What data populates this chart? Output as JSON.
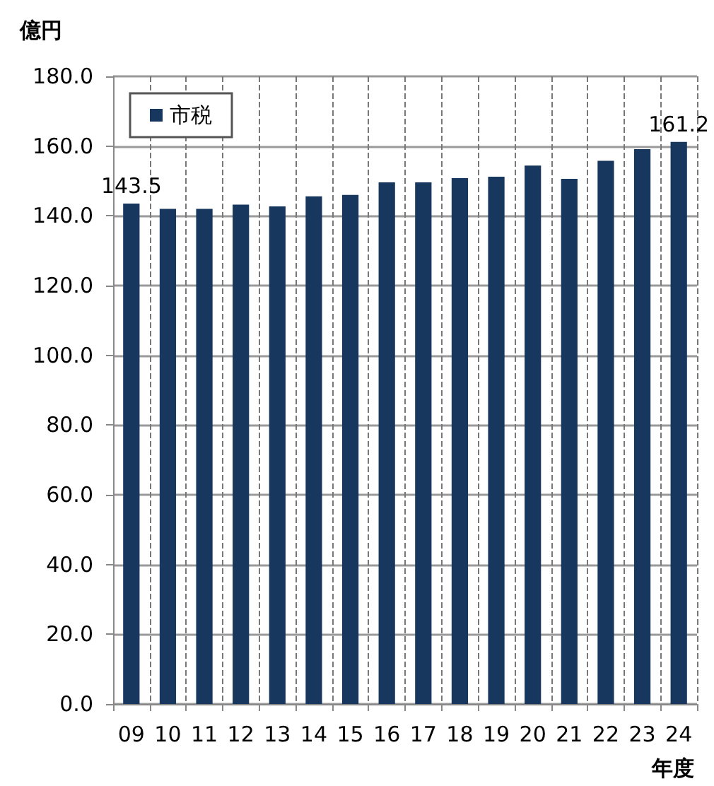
{
  "chart_data": {
    "type": "bar",
    "ylabel": "億円",
    "xlabel": "年度",
    "categories": [
      "09",
      "10",
      "11",
      "12",
      "13",
      "14",
      "15",
      "16",
      "17",
      "18",
      "19",
      "20",
      "21",
      "22",
      "23",
      "24"
    ],
    "series": [
      {
        "name": "市税",
        "color": "#17375e",
        "values": [
          143.5,
          142.0,
          142.0,
          143.2,
          142.7,
          145.6,
          146.0,
          149.6,
          149.6,
          150.8,
          151.2,
          154.4,
          150.6,
          155.8,
          159.1,
          161.2
        ],
        "value_labels": [
          "143.5",
          null,
          null,
          null,
          null,
          null,
          null,
          null,
          null,
          null,
          null,
          null,
          null,
          null,
          null,
          "161.2"
        ]
      }
    ],
    "ylim": [
      0,
      180
    ],
    "yticks": [
      {
        "value": 0,
        "label": "0.0"
      },
      {
        "value": 20,
        "label": "20.0"
      },
      {
        "value": 40,
        "label": "40.0"
      },
      {
        "value": 60,
        "label": "60.0"
      },
      {
        "value": 80,
        "label": "80.0"
      },
      {
        "value": 100,
        "label": "100.0"
      },
      {
        "value": 120,
        "label": "120.0"
      },
      {
        "value": 140,
        "label": "140.0"
      },
      {
        "value": 160,
        "label": "160.0"
      },
      {
        "value": 180,
        "label": "180.0"
      }
    ],
    "grid": true,
    "legend": "top left"
  }
}
